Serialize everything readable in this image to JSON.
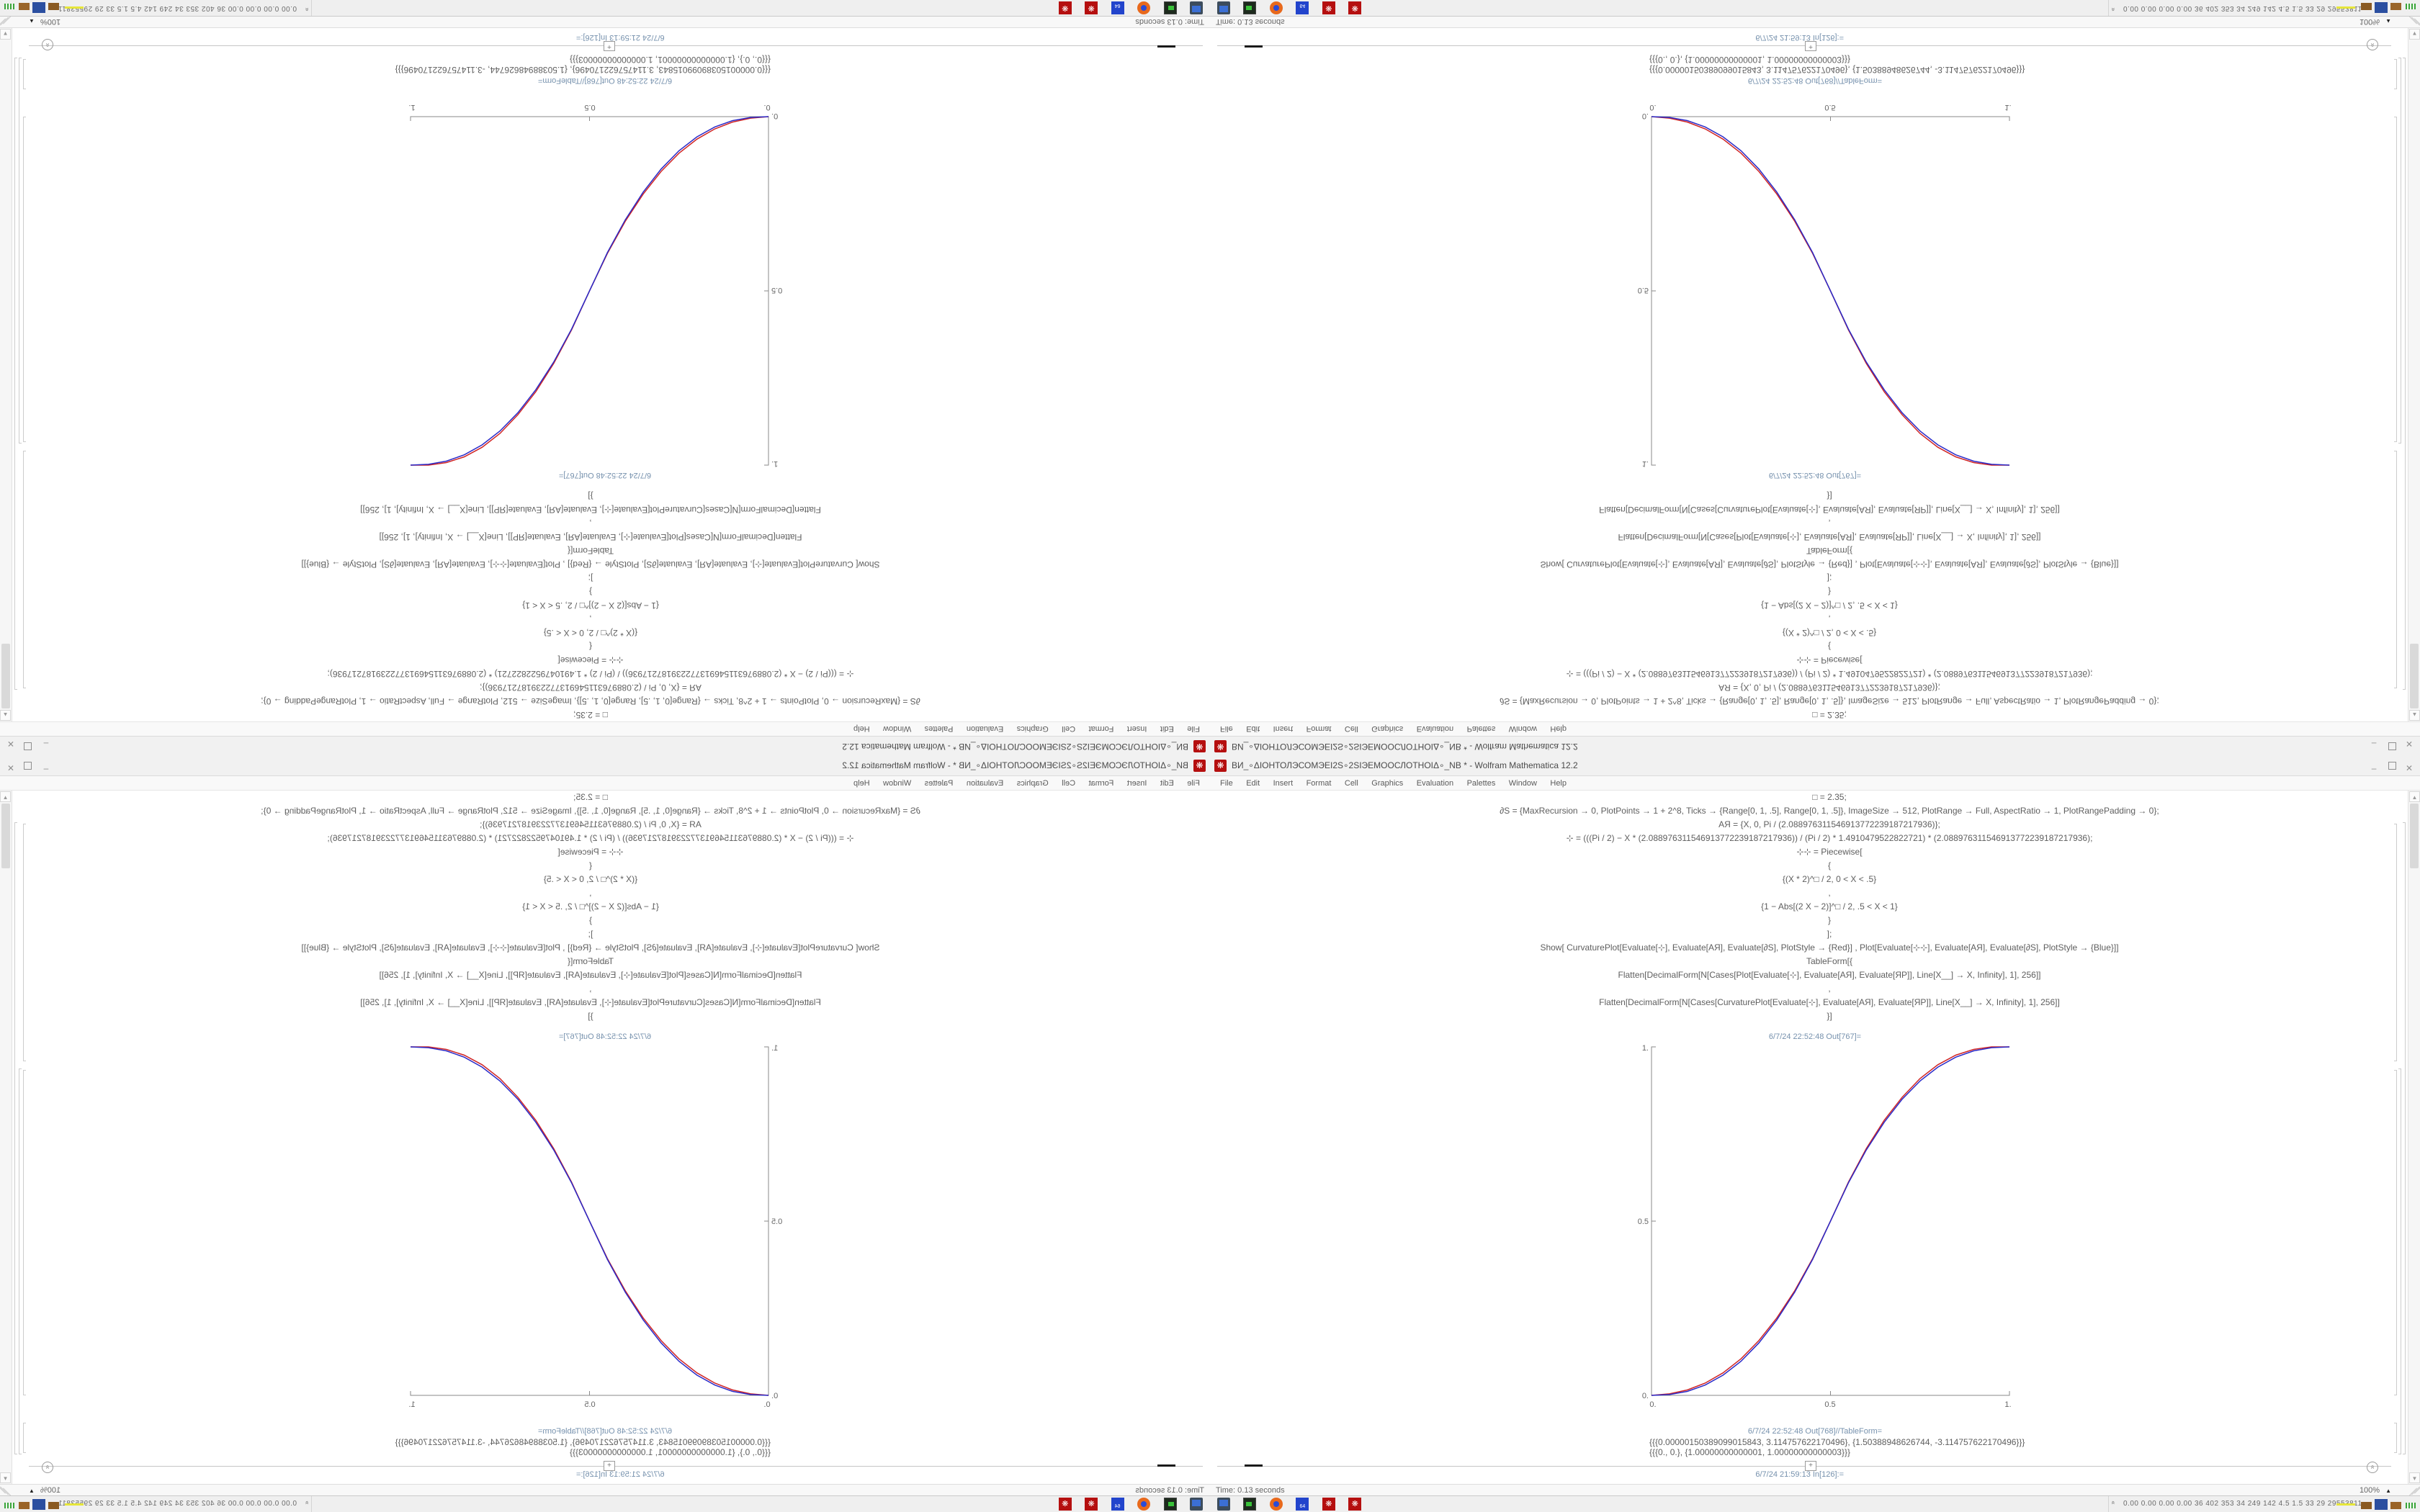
{
  "window": {
    "title": "ВИ_∘ΔIОНТОЛЭСОМЭЕI2S∘2SIЭЕМООСЛОТНОIΔ∘_NB * - Wolfram Mathematica 12.2",
    "app_icon_glyph": "❋",
    "menu": [
      "File",
      "Edit",
      "Insert",
      "Format",
      "Cell",
      "Graphics",
      "Evaluation",
      "Palettes",
      "Window",
      "Help"
    ],
    "controls": {
      "minimize": "–",
      "close": "✕"
    }
  },
  "notebook": {
    "code_lines": [
      "□ = 2.35;",
      "∂S = {MaxRecursion → 0, PlotPoints → 1 + 2^8, Ticks → {Range[0, 1, .5], Range[0, 1, .5]}, ImageSize → 512, PlotRange → Full, AspectRatio → 1, PlotRangePadding → 0};",
      "АЯ = {X, 0, Pi / (2.088976311546913772239187217936)};",
      "⊹ = (((Pi / 2) − X * (2.088976311546913772239187217936)) / (Pi / 2) * 1.4910479522822721) * (2.088976311546913772239187217936);",
      "⊹⊹ = Piecewise[",
      "{",
      "{(X * 2)^□ / 2,  0 < X < .5}",
      ",",
      "{1 − Abs[(2 X − 2)]^□ / 2,  .5 < X < 1}",
      "}",
      "];",
      "Show[   CurvaturePlot[Evaluate[⊹], Evaluate[АЯ], Evaluate[∂S],  PlotStyle → {Red}]   ,    Plot[Evaluate[⊹⊹], Evaluate[АЯ], Evaluate[∂S],  PlotStyle → {Blue}]]",
      "TableForm[{",
      "Flatten[DecimalForm[N[Cases[Plot[Evaluate[⊹], Evaluate[АЯ], Evaluate[ЯР]], Line[X__] → X, Infinity], 1], 256]]",
      ",",
      "Flatten[DecimalForm[N[Cases[CurvaturePlot[Evaluate[⊹], Evaluate[АЯ], Evaluate[ЯР]], Line[X__] → X, Infinity], 1], 256]]",
      "}]"
    ],
    "out1_label": "6/7/24 22:52:48 Out[767]=",
    "out2_label": "6/7/24 22:52:48 Out[768]//TableForm=",
    "table_rows": [
      "{{{0.00000150389099015843, 3.114757622170496}, {1.50388948626744, -3.114757622170496}}}",
      "{{{0., 0.}, {1.00000000000001, 1.00000000000003}}}"
    ],
    "insert_plus": "+",
    "next_in_label": "6/7/24 21:59:13 In[126]:=",
    "status_time": "Time: 0.13 seconds",
    "magnification": "100%",
    "icons": {
      "scroll_up": "▲",
      "scroll_down": "▼",
      "zoom_arrow": "▲",
      "suggest_chevrons": "»"
    }
  },
  "taskbar": {
    "tray_chevrons": "«",
    "tray_numbers": "0.00 0.00 0.00 0.00   36   402   353   34   249   142   4.5   1.5   33   29   29553811",
    "floppy_label": "64",
    "mathematica_glyph": "❋",
    "icons": [
      "system-monitor",
      "terminal",
      "firefox",
      "floppy64",
      "mathematica",
      "mathematica"
    ]
  },
  "chart_data": {
    "type": "line",
    "title": "",
    "xlabel": "",
    "ylabel": "",
    "xlim": [
      0,
      1
    ],
    "ylim": [
      0,
      1
    ],
    "grid": false,
    "legend": "none",
    "xticks": [
      "0.",
      "0.5",
      "1."
    ],
    "yticks": [
      "0.",
      "0.5",
      "1."
    ],
    "function": "piecewise S-curve: y=(2x)^2.35/2 for 0<x<.5 ; y=1-(2-2x)^2.35/2 for .5<x<1 ; exponent □=2.35",
    "series": [
      {
        "name": "CurvaturePlot (Red)",
        "color": "#d02525",
        "x": [
          0,
          0.05,
          0.1,
          0.15,
          0.2,
          0.25,
          0.3,
          0.35,
          0.4,
          0.45,
          0.5,
          0.55,
          0.6,
          0.65,
          0.7,
          0.75,
          0.8,
          0.85,
          0.9,
          0.95,
          1
        ],
        "y": [
          0,
          0.0043,
          0.0155,
          0.0352,
          0.0647,
          0.105,
          0.1572,
          0.222,
          0.3,
          0.3925,
          0.5,
          0.6119,
          0.7082,
          0.7894,
          0.8552,
          0.909,
          0.9487,
          0.9762,
          0.9927,
          0.9999,
          1
        ]
      },
      {
        "name": "Plot of ⊹⊹ (Blue)",
        "color": "#2a2ac8",
        "x": [
          0,
          0.05,
          0.1,
          0.15,
          0.2,
          0.25,
          0.3,
          0.35,
          0.4,
          0.45,
          0.5,
          0.55,
          0.6,
          0.65,
          0.7,
          0.75,
          0.8,
          0.85,
          0.9,
          0.95,
          1
        ],
        "y": [
          0,
          0.0022,
          0.0114,
          0.0295,
          0.058,
          0.098,
          0.1505,
          0.2163,
          0.2959,
          0.3903,
          0.5,
          0.6097,
          0.7041,
          0.7837,
          0.8495,
          0.902,
          0.942,
          0.9705,
          0.9886,
          0.9978,
          1
        ]
      }
    ]
  }
}
